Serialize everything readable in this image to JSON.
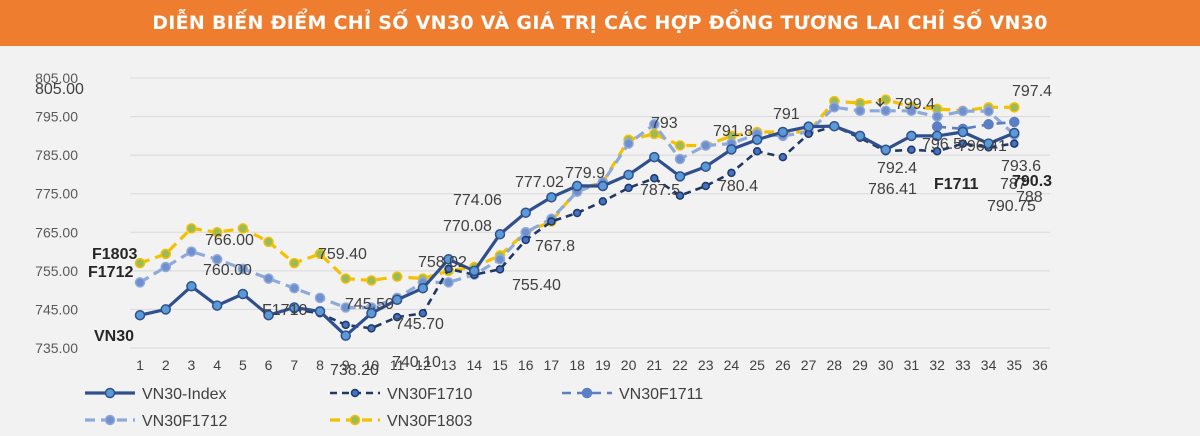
{
  "banner": {
    "title": "DIỄN BIẾN ĐIỂM CHỈ SỐ VN30 VÀ GIÁ TRỊ CÁC HỢP ĐỒNG TƯƠNG LAI CHỈ SỐ VN30"
  },
  "chart_data": {
    "type": "line",
    "title": "",
    "xlabel": "",
    "ylabel": "",
    "ylim": [
      735,
      805
    ],
    "yticks": [
      "735.00",
      "745.00",
      "755.00",
      "765.00",
      "775.00",
      "785.00",
      "795.00",
      "805.00"
    ],
    "categories": [
      "1",
      "2",
      "3",
      "4",
      "5",
      "6",
      "7",
      "8",
      "9",
      "10",
      "11",
      "12",
      "13",
      "14",
      "15",
      "16",
      "17",
      "18",
      "19",
      "20",
      "21",
      "22",
      "23",
      "24",
      "25",
      "26",
      "27",
      "28",
      "29",
      "30",
      "31",
      "32",
      "33",
      "34",
      "35",
      "36"
    ],
    "grid": true,
    "legend_position": "bottom",
    "series": [
      {
        "name": "VN30-Index",
        "color": "#2f4f8f",
        "style": "solid",
        "values": [
          743.5,
          745,
          751,
          746,
          749,
          743.5,
          745.5,
          744.5,
          738.2,
          744,
          747.5,
          750.5,
          758,
          755,
          764.5,
          770.08,
          774.06,
          777.02,
          777,
          779.9,
          784.5,
          779.5,
          782,
          786.5,
          789,
          791,
          792.4,
          792.5,
          790,
          786.41,
          790,
          790,
          791,
          788,
          790.75,
          null
        ]
      },
      {
        "name": "VN30F1710",
        "color": "#1f3864",
        "style": "dashed",
        "values": [
          null,
          null,
          null,
          null,
          null,
          null,
          745,
          744,
          741,
          740.1,
          743,
          744,
          755.5,
          754,
          755.4,
          763,
          767.8,
          770,
          773,
          776.5,
          779,
          774.5,
          777,
          780.4,
          786,
          784.5,
          790.5,
          792.5,
          789.5,
          786,
          786.41,
          786,
          788,
          787,
          788,
          null
        ]
      },
      {
        "name": "VN30F1711",
        "color": "#5b7fc4",
        "style": "dashed",
        "values": [
          null,
          null,
          null,
          null,
          null,
          null,
          null,
          null,
          null,
          null,
          null,
          null,
          null,
          null,
          null,
          null,
          null,
          null,
          null,
          null,
          null,
          null,
          null,
          null,
          null,
          null,
          null,
          null,
          null,
          null,
          null,
          792.4,
          791.8,
          793,
          793.6,
          null
        ]
      },
      {
        "name": "VN30F1712",
        "color": "#8eaadb",
        "style": "dashed",
        "values": [
          752,
          756,
          760,
          758,
          755.5,
          753,
          750.5,
          748,
          745.5,
          745.5,
          748,
          752,
          752,
          754,
          758,
          765,
          768.5,
          775.5,
          778,
          788,
          793,
          784,
          787.5,
          788,
          790.5,
          790,
          791,
          797.4,
          796.5,
          796.5,
          796.5,
          795,
          796.41,
          796.41,
          790.3,
          null
        ]
      },
      {
        "name": "VN30F1803",
        "color": "#f5c000",
        "style": "dashed",
        "values": [
          757,
          759.4,
          766,
          765,
          766,
          762.5,
          757,
          759.4,
          753,
          752.5,
          753.5,
          753,
          755,
          756,
          759,
          765,
          767.8,
          776,
          778,
          789,
          790.5,
          787.5,
          787.5,
          790,
          791,
          791,
          791,
          799,
          798.5,
          799.4,
          797.5,
          797,
          796.5,
          797.4,
          797.4,
          null
        ]
      }
    ],
    "annotations": [
      {
        "text": "805.00"
      },
      {
        "text": "F1803"
      },
      {
        "text": "F1712"
      },
      {
        "text": "VN30"
      },
      {
        "text": "F1710"
      },
      {
        "text": "766.00"
      },
      {
        "text": "760.00"
      },
      {
        "text": "759.40"
      },
      {
        "text": "745.50"
      },
      {
        "text": "738.20"
      },
      {
        "text": "740.10"
      },
      {
        "text": "745.70"
      },
      {
        "text": "758.02"
      },
      {
        "text": "770.08"
      },
      {
        "text": "774.06"
      },
      {
        "text": "777.02"
      },
      {
        "text": "767.8"
      },
      {
        "text": "755.40"
      },
      {
        "text": "779.9"
      },
      {
        "text": "793"
      },
      {
        "text": "787.5"
      },
      {
        "text": "791.8"
      },
      {
        "text": "780.4"
      },
      {
        "text": "791"
      },
      {
        "text": "799.4"
      },
      {
        "text": "797.4"
      },
      {
        "text": "796.5"
      },
      {
        "text": "796.41"
      },
      {
        "text": "792.4"
      },
      {
        "text": "793.6"
      },
      {
        "text": "790.75"
      },
      {
        "text": "786.41"
      },
      {
        "text": "F1711"
      },
      {
        "text": "787"
      },
      {
        "text": "790.3"
      },
      {
        "text": "788"
      }
    ]
  }
}
